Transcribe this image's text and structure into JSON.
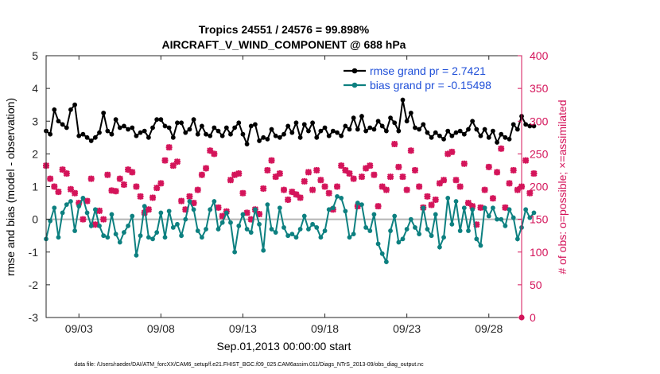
{
  "chart_data": {
    "type": "line",
    "title": "Tropics 24551 / 24576 = 99.898%",
    "subtitle": "AIRCRAFT_V_WIND_COMPONENT @ 688 hPa",
    "xlabel": "Sep.01,2013 00:00:00 start",
    "ylabel_left": "rmse and bias (model - observation)",
    "ylabel_right": "# of obs: o=possible; ×=assimilated",
    "footnote": "data file: /Users/raeder/DAI/ATM_forcXX/CAM6_setup/f.e21.FHIST_BGC.f09_025.CAM6assim.011/Diags_NTrS_2013-09/obs_diag_output.nc",
    "xlim": [
      1.0,
      30.0
    ],
    "ylim_left": [
      -3,
      5
    ],
    "ylim_right": [
      0,
      400
    ],
    "x_ticks": [
      {
        "value": 3,
        "label": "09/03"
      },
      {
        "value": 8,
        "label": "09/08"
      },
      {
        "value": 13,
        "label": "09/13"
      },
      {
        "value": 18,
        "label": "09/18"
      },
      {
        "value": 23,
        "label": "09/23"
      },
      {
        "value": 28,
        "label": "09/28"
      }
    ],
    "y_ticks_left": [
      "-3",
      "-2",
      "-1",
      "0",
      "1",
      "2",
      "3",
      "4",
      "5"
    ],
    "y_ticks_right": [
      "0",
      "50",
      "100",
      "150",
      "200",
      "250",
      "300",
      "350",
      "400"
    ],
    "zero_line": 0,
    "x_step_days": 0.25,
    "x_start": 1.0,
    "legend": [
      {
        "label": "rmse grand pr = 2.7421",
        "color": "#000000"
      },
      {
        "label": "bias grand pr = -0.15498",
        "color": "#0d8080"
      }
    ],
    "series": [
      {
        "name": "rmse",
        "color": "#000000",
        "axis": "left",
        "values": [
          2.7,
          2.6,
          3.35,
          3.0,
          2.9,
          2.8,
          3.35,
          3.5,
          2.55,
          2.6,
          2.5,
          2.4,
          2.5,
          2.65,
          3.25,
          2.7,
          2.6,
          3.05,
          2.8,
          2.85,
          2.75,
          2.8,
          2.55,
          2.65,
          2.7,
          2.5,
          2.8,
          3.05,
          3.05,
          2.85,
          2.8,
          2.5,
          2.95,
          2.95,
          2.65,
          2.75,
          3.05,
          2.6,
          2.85,
          2.6,
          2.55,
          2.8,
          2.7,
          2.55,
          2.8,
          2.6,
          2.8,
          2.95,
          2.6,
          2.3,
          2.85,
          2.9,
          2.4,
          2.5,
          2.45,
          2.75,
          2.55,
          2.5,
          2.6,
          2.85,
          2.65,
          2.95,
          2.5,
          2.9,
          2.7,
          2.95,
          2.5,
          2.7,
          2.8,
          2.55,
          2.7,
          2.65,
          2.55,
          2.85,
          2.75,
          3.1,
          2.75,
          3.15,
          2.7,
          2.8,
          2.75,
          3.0,
          2.85,
          2.7,
          3.1,
          2.95,
          2.7,
          3.65,
          3.0,
          3.25,
          2.8,
          2.75,
          2.9,
          2.65,
          2.5,
          2.65,
          2.55,
          2.45,
          2.7,
          2.55,
          2.65,
          2.7,
          2.6,
          2.75,
          3.0,
          2.75,
          2.55,
          2.75,
          2.5,
          2.7,
          2.35,
          2.6,
          2.5,
          2.45,
          2.9,
          2.75,
          3.15,
          2.9,
          2.85,
          2.85
        ]
      },
      {
        "name": "bias",
        "color": "#0d8080",
        "axis": "left",
        "values": [
          -0.6,
          -0.05,
          0.35,
          -0.55,
          0.2,
          0.45,
          0.55,
          -0.35,
          0.4,
          0.65,
          0.2,
          -0.2,
          0.3,
          -0.2,
          -0.5,
          -0.55,
          0.15,
          -0.45,
          -0.7,
          -0.4,
          -0.2,
          0.1,
          -1.1,
          -0.5,
          0.4,
          -0.55,
          -0.6,
          -0.4,
          0.2,
          -0.55,
          0.25,
          -0.25,
          -0.15,
          -0.5,
          0.0,
          0.55,
          0.3,
          -0.35,
          -0.55,
          -0.3,
          0.3,
          0.55,
          -0.3,
          -0.1,
          0.2,
          -0.1,
          -1.0,
          -0.2,
          0.15,
          -0.3,
          -0.4,
          0.3,
          -0.15,
          -0.95,
          0.45,
          -0.3,
          -0.4,
          0.35,
          -0.25,
          -0.5,
          -0.45,
          -0.55,
          -0.3,
          0.1,
          -0.3,
          -0.15,
          -0.25,
          -0.55,
          -0.35,
          0.3,
          0.35,
          0.7,
          0.65,
          0.25,
          -0.55,
          -0.45,
          0.5,
          0.45,
          -0.25,
          -0.35,
          0.15,
          -0.75,
          -1.05,
          -1.3,
          -0.35,
          0.1,
          -0.7,
          -0.6,
          -0.3,
          0.0,
          -0.25,
          -0.45,
          0.35,
          -0.3,
          -0.5,
          0.15,
          -0.85,
          -0.55,
          0.65,
          -0.15,
          0.55,
          -0.35,
          0.35,
          -0.35,
          0.3,
          -0.6,
          -0.8,
          0.35,
          0.1,
          0.35,
          0.0,
          0.0,
          -0.2,
          0.3,
          0.05,
          -0.6,
          -0.25,
          0.3,
          0.05,
          0.2
        ]
      },
      {
        "name": "assimilated",
        "color": "#d4145a",
        "axis": "right",
        "values": [
          232,
          212,
          200,
          192,
          226,
          220,
          196,
          190,
          175,
          150,
          178,
          212,
          142,
          163,
          150,
          218,
          194,
          193,
          212,
          203,
          226,
          222,
          200,
          185,
          160,
          165,
          183,
          198,
          205,
          240,
          260,
          232,
          238,
          178,
          165,
          185,
          175,
          195,
          218,
          228,
          255,
          250,
          168,
          155,
          162,
          210,
          218,
          220,
          190,
          160,
          150,
          165,
          158,
          197,
          225,
          240,
          215,
          220,
          195,
          180,
          192,
          188,
          183,
          208,
          222,
          195,
          225,
          210,
          200,
          190,
          165,
          200,
          232,
          225,
          220,
          212,
          170,
          215,
          228,
          232,
          218,
          170,
          200,
          195,
          215,
          265,
          230,
          215,
          195,
          255,
          225,
          200,
          168,
          185,
          172,
          180,
          205,
          210,
          250,
          253,
          210,
          200,
          235,
          175,
          170,
          142,
          168,
          195,
          230,
          182,
          222,
          258,
          168,
          205,
          225,
          195,
          200,
          240,
          190,
          220
        ]
      }
    ]
  }
}
